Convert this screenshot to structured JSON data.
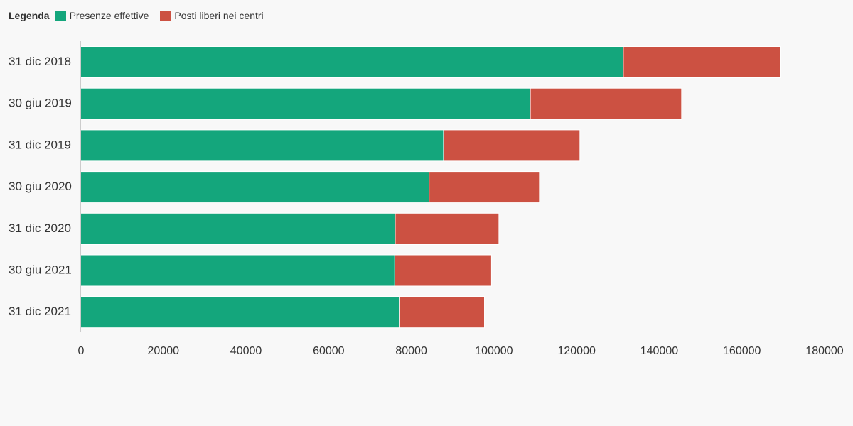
{
  "legend": {
    "title": "Legenda",
    "items": [
      {
        "label": "Presenze effettive",
        "color": "#14a67c"
      },
      {
        "label": "Posti liberi nei centri",
        "color": "#cc5142"
      }
    ]
  },
  "chart_data": {
    "type": "bar",
    "orientation": "horizontal",
    "stacked": true,
    "categories": [
      "31 dic 2018",
      "30 giu 2019",
      "31 dic 2019",
      "30 giu 2020",
      "31 dic 2020",
      "30 giu 2021",
      "31 dic 2021"
    ],
    "series": [
      {
        "name": "Presenze effettive",
        "color": "#14a67c",
        "values": [
          131300,
          108800,
          87800,
          84300,
          76100,
          76000,
          77200
        ]
      },
      {
        "name": "Posti liberi nei centri",
        "color": "#cc5142",
        "values": [
          38100,
          36600,
          33000,
          26700,
          25100,
          23400,
          20500
        ]
      }
    ],
    "xlim": [
      0,
      180000
    ],
    "xticks": [
      0,
      20000,
      40000,
      60000,
      80000,
      100000,
      120000,
      140000,
      160000,
      180000
    ],
    "grid": false,
    "legend_position": "top-left"
  }
}
